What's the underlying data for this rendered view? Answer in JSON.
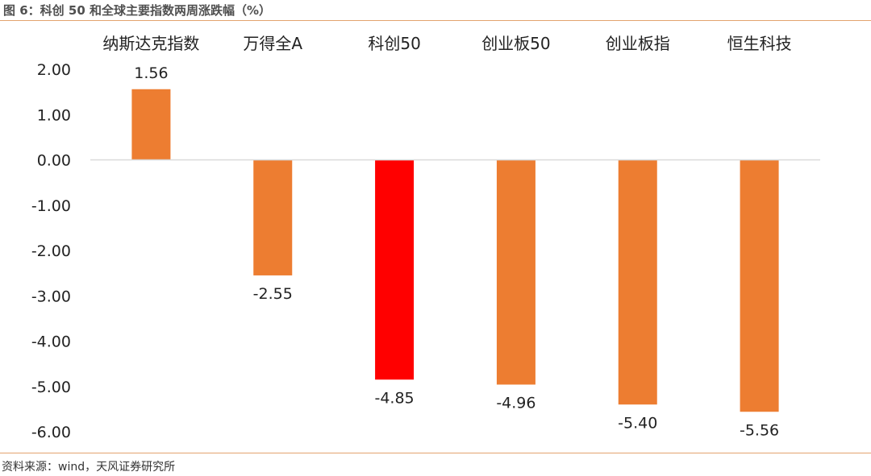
{
  "figure_title": "图 6：科创 50 和全球主要指数两周涨跌幅（%）",
  "source": "资料来源：wind，天风证券研究所",
  "colors": {
    "default_bar": "#ED7D31",
    "highlight_bar": "#FF0000",
    "axis": "#D9D9D9",
    "rule": "#E3A36E"
  },
  "chart_data": {
    "type": "bar",
    "title": "",
    "xlabel": "",
    "ylabel": "",
    "categories": [
      "纳斯达克指数",
      "万得全A",
      "科创50",
      "创业板50",
      "创业板指",
      "恒生科技"
    ],
    "values": [
      1.56,
      -2.55,
      -4.85,
      -4.96,
      -5.4,
      -5.56
    ],
    "value_labels": [
      "1.56",
      "-2.55",
      "-4.85",
      "-4.96",
      "-5.40",
      "-5.56"
    ],
    "highlight_index": 2,
    "ylim": [
      -6,
      2
    ],
    "yticks": [
      2,
      1,
      0,
      -1,
      -2,
      -3,
      -4,
      -5,
      -6
    ],
    "ytick_labels": [
      "2.00",
      "1.00",
      "0.00",
      "-1.00",
      "-2.00",
      "-3.00",
      "-4.00",
      "-5.00",
      "-6.00"
    ],
    "grid": false,
    "legend": "none",
    "category_label_position": "top"
  }
}
